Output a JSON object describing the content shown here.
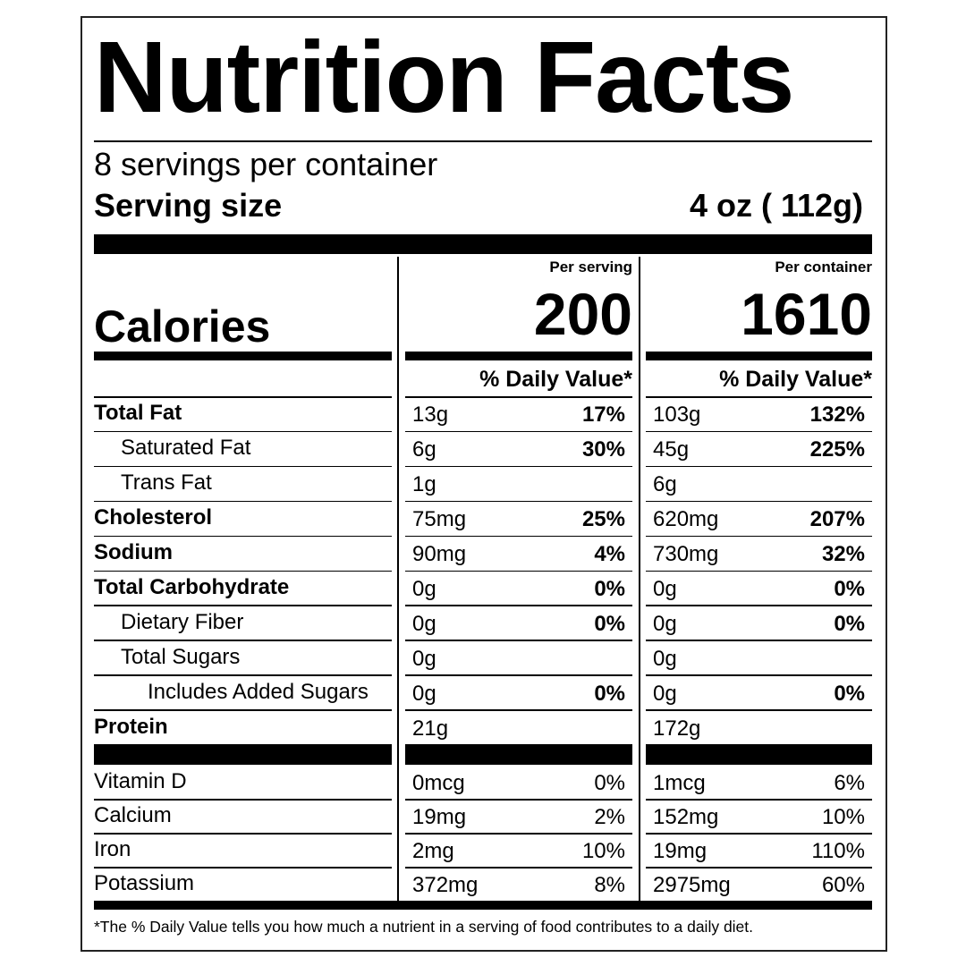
{
  "header": {
    "title": "Nutrition Facts",
    "servings": "8 servings per container",
    "serving_size_label": "Serving size",
    "serving_size": "4 oz ( 112g)"
  },
  "calories": {
    "label": "Calories",
    "columns": [
      {
        "heading": "Per serving",
        "value": "200",
        "dv_heading": "% Daily Value*"
      },
      {
        "heading": "Per container",
        "value": "1610",
        "dv_heading": "% Daily Value*"
      }
    ]
  },
  "nutrients": [
    {
      "label": "Total Fat",
      "bold": true,
      "indent": 0,
      "values": [
        {
          "amount": "13g",
          "dv": "17%"
        },
        {
          "amount": "103g",
          "dv": "132%"
        }
      ]
    },
    {
      "label": "Saturated Fat",
      "bold": false,
      "indent": 1,
      "values": [
        {
          "amount": "6g",
          "dv": "30%"
        },
        {
          "amount": "45g",
          "dv": "225%"
        }
      ]
    },
    {
      "label": "Trans Fat",
      "bold": false,
      "indent": 1,
      "values": [
        {
          "amount": "1g"
        },
        {
          "amount": "6g"
        }
      ]
    },
    {
      "label": "Cholesterol",
      "bold": true,
      "indent": 0,
      "values": [
        {
          "amount": "75mg",
          "dv": "25%"
        },
        {
          "amount": "620mg",
          "dv": "207%"
        }
      ]
    },
    {
      "label": "Sodium",
      "bold": true,
      "indent": 0,
      "values": [
        {
          "amount": "90mg",
          "dv": "4%"
        },
        {
          "amount": "730mg",
          "dv": "32%"
        }
      ]
    },
    {
      "label": "Total Carbohydrate",
      "bold": true,
      "indent": 0,
      "values": [
        {
          "amount": "0g",
          "dv": "0%"
        },
        {
          "amount": "0g",
          "dv": "0%"
        }
      ]
    },
    {
      "label": "Dietary Fiber",
      "bold": false,
      "indent": 1,
      "values": [
        {
          "amount": "0g",
          "dv": "0%"
        },
        {
          "amount": "0g",
          "dv": "0%"
        }
      ]
    },
    {
      "label": "Total Sugars",
      "bold": false,
      "indent": 1,
      "values": [
        {
          "amount": "0g"
        },
        {
          "amount": "0g"
        }
      ]
    },
    {
      "label": "Includes Added Sugars",
      "bold": false,
      "indent": 2,
      "values": [
        {
          "amount": "0g",
          "dv": "0%"
        },
        {
          "amount": "0g",
          "dv": "0%"
        }
      ]
    },
    {
      "label": "Protein",
      "bold": true,
      "indent": 0,
      "values": [
        {
          "amount": "21g"
        },
        {
          "amount": "172g"
        }
      ]
    }
  ],
  "vitamins": [
    {
      "label": "Vitamin D",
      "values": [
        {
          "amount": "0mcg",
          "dv": "0%"
        },
        {
          "amount": "1mcg",
          "dv": "6%"
        }
      ]
    },
    {
      "label": "Calcium",
      "values": [
        {
          "amount": "19mg",
          "dv": "2%"
        },
        {
          "amount": "152mg",
          "dv": "10%"
        }
      ]
    },
    {
      "label": "Iron",
      "values": [
        {
          "amount": "2mg",
          "dv": "10%"
        },
        {
          "amount": "19mg",
          "dv": "110%"
        }
      ]
    },
    {
      "label": "Potassium",
      "values": [
        {
          "amount": "372mg",
          "dv": "8%"
        },
        {
          "amount": "2975mg",
          "dv": "60%"
        }
      ]
    }
  ],
  "footnote": "*The % Daily Value tells you how much a nutrient in a serving of food contributes to a daily diet."
}
